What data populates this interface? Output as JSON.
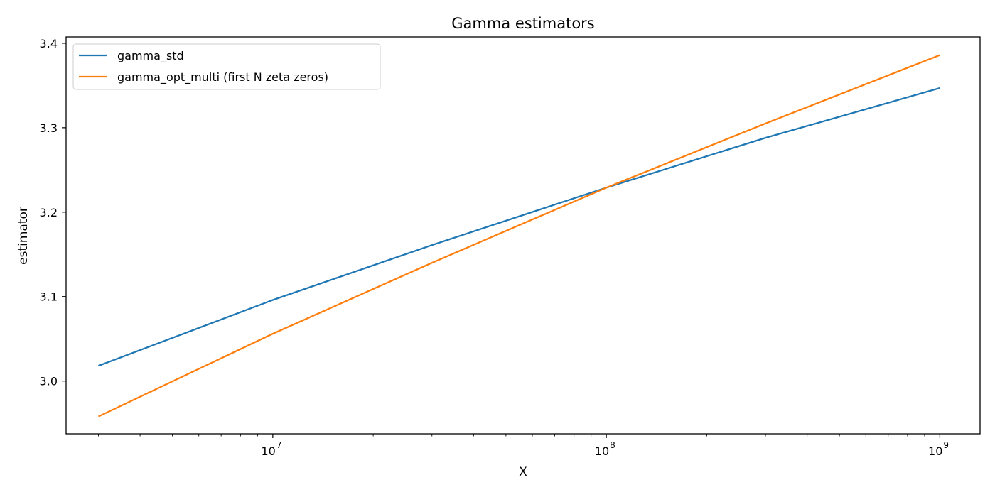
{
  "chart_data": {
    "type": "line",
    "title": "Gamma estimators",
    "xlabel": "X",
    "ylabel": "estimator",
    "x_scale": "log",
    "xlim": [
      2400000,
      1320000000
    ],
    "ylim": [
      2.9375,
      3.4075
    ],
    "grid": false,
    "legend_position": "top-left",
    "x_ticks": [
      {
        "base": "10",
        "exp": "7",
        "value": 10000000
      },
      {
        "base": "10",
        "exp": "8",
        "value": 100000000
      },
      {
        "base": "10",
        "exp": "9",
        "value": 1000000000
      }
    ],
    "y_ticks": [
      {
        "label": "3.0",
        "value": 3.0
      },
      {
        "label": "3.1",
        "value": 3.1
      },
      {
        "label": "3.2",
        "value": 3.2
      },
      {
        "label": "3.3",
        "value": 3.3
      },
      {
        "label": "3.4",
        "value": 3.4
      }
    ],
    "x": [
      3000000,
      10000000,
      30000000,
      100000000,
      300000000,
      1000000000
    ],
    "series": [
      {
        "name": "gamma_std",
        "color": "#1f77b4",
        "values": [
          3.018,
          3.096,
          3.161,
          3.229,
          3.288,
          3.347
        ]
      },
      {
        "name": "gamma_opt_multi (first N zeta zeros)",
        "color": "#ff7f0e",
        "values": [
          2.958,
          3.056,
          3.14,
          3.229,
          3.305,
          3.386
        ]
      }
    ]
  }
}
